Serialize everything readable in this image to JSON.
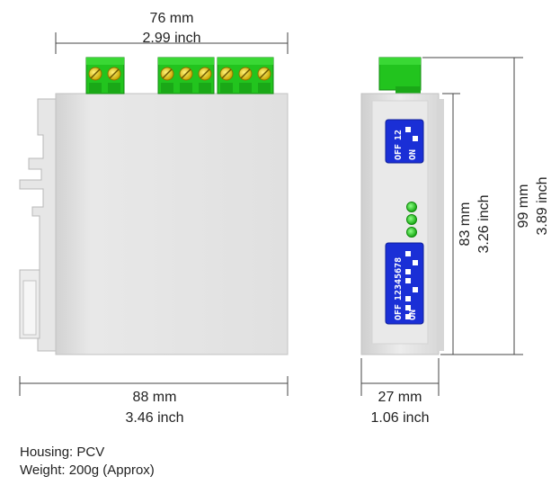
{
  "dimensions": {
    "front_width": {
      "mm": "76 mm",
      "inch": "2.99 inch"
    },
    "front_depth": {
      "mm": "88 mm",
      "inch": "3.46 inch"
    },
    "side_width": {
      "mm": "27 mm",
      "inch": "1.06 inch"
    },
    "body_height": {
      "mm": "83 mm",
      "inch": "3.26 inch"
    },
    "total_height": {
      "mm": "99 mm",
      "inch": "3.89 inch"
    }
  },
  "dip_switch_small": {
    "numbers": "12",
    "off": "OFF",
    "on": "ON"
  },
  "dip_switch_large": {
    "numbers": "12345678",
    "off": "OFF",
    "on": "ON"
  },
  "specs": {
    "housing": "Housing: PCV",
    "weight": "Weight: 200g (Approx)"
  },
  "colors": {
    "housing": "#e3e3e3",
    "terminal_green": "#22c41e",
    "dip_blue": "#1a2fd6",
    "led_green": "#2fd62a",
    "dimension_line": "#444444"
  }
}
